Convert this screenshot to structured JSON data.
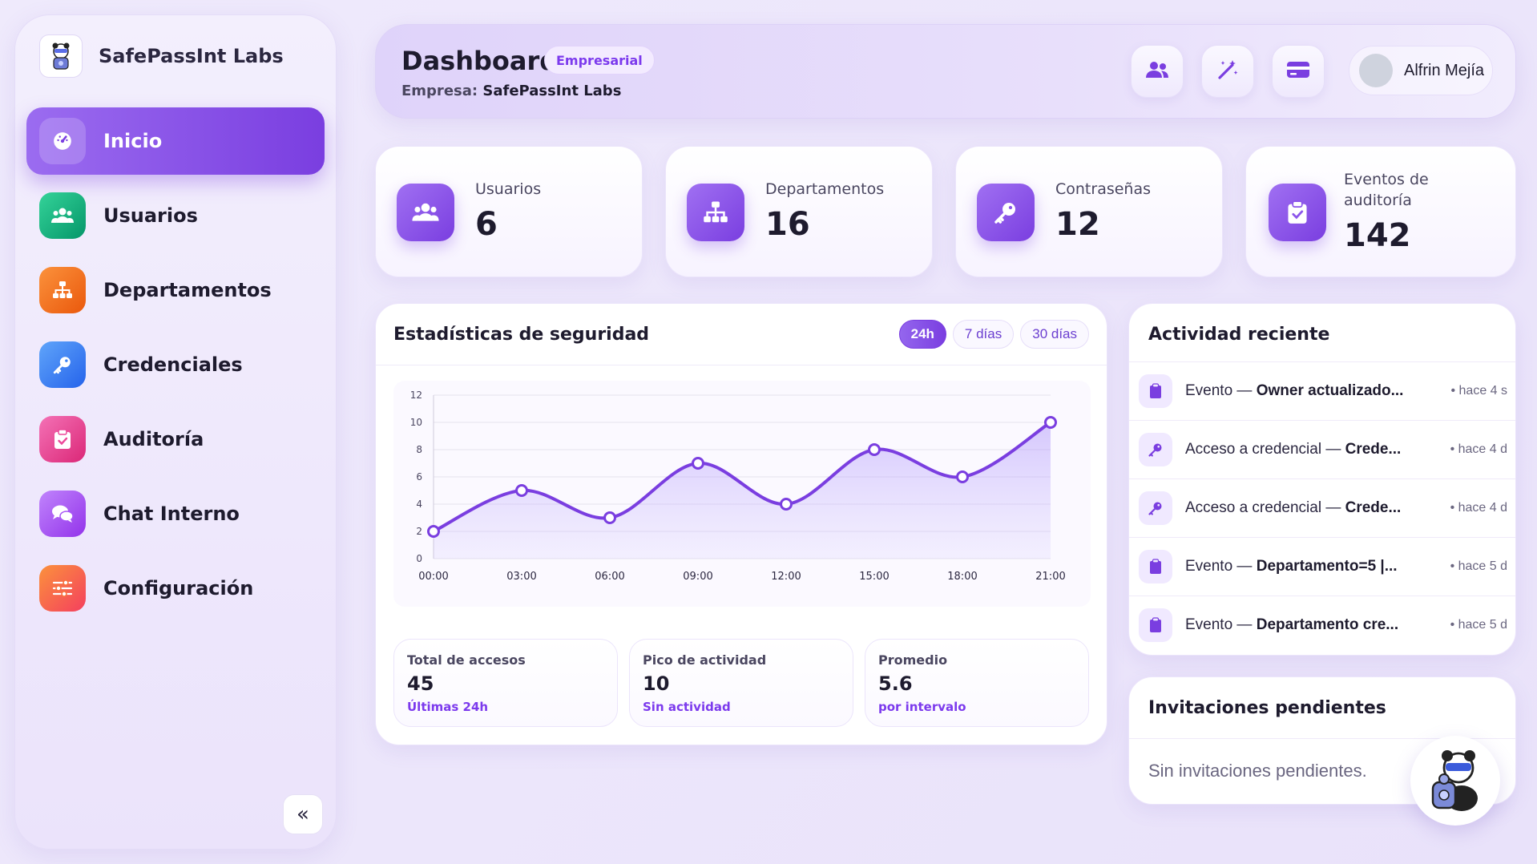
{
  "brand": {
    "name": "SafePassInt Labs"
  },
  "sidebar": {
    "items": [
      {
        "label": "Inicio",
        "icon": "gauge-icon",
        "color": "#7a3ee0",
        "active": true
      },
      {
        "label": "Usuarios",
        "icon": "users-icon",
        "color": "#10b981"
      },
      {
        "label": "Departamentos",
        "icon": "sitemap-icon",
        "color": "#f97316"
      },
      {
        "label": "Credenciales",
        "icon": "key-icon",
        "color": "#3b82f6"
      },
      {
        "label": "Auditoría",
        "icon": "clipboard-check-icon",
        "color": "#ec4899"
      },
      {
        "label": "Chat Interno",
        "icon": "chat-icon",
        "color": "#a855f7"
      },
      {
        "label": "Configuración",
        "icon": "sliders-icon",
        "color": "#f9733e"
      }
    ],
    "collapse_label": "«"
  },
  "header": {
    "title": "Dashboard",
    "badge": "Empresarial",
    "company_prefix": "Empresa:",
    "company_name": "SafePassInt Labs",
    "user_name": "Alfrin Mejía",
    "buttons": [
      "users-icon",
      "magic-wand-icon",
      "credit-card-icon"
    ]
  },
  "stats": [
    {
      "label": "Usuarios",
      "value": "6",
      "icon": "users-icon"
    },
    {
      "label": "Departamentos",
      "value": "16",
      "icon": "sitemap-icon"
    },
    {
      "label": "Contraseñas",
      "value": "12",
      "icon": "key-icon"
    },
    {
      "label_line1": "Eventos de",
      "label_line2": "auditoría",
      "value": "142",
      "icon": "clipboard-check-icon"
    }
  ],
  "security": {
    "title": "Estadísticas de seguridad",
    "tabs": [
      {
        "label": "24h",
        "active": true
      },
      {
        "label": "7 días"
      },
      {
        "label": "30 días"
      }
    ],
    "summary": [
      {
        "label": "Total de accesos",
        "value": "45",
        "sub": "Últimas 24h"
      },
      {
        "label": "Pico de actividad",
        "value": "10",
        "sub": "Sin actividad"
      },
      {
        "label": "Promedio",
        "value": "5.6",
        "sub": "por intervalo"
      }
    ]
  },
  "chart_data": {
    "type": "area",
    "categories": [
      "00:00",
      "03:00",
      "06:00",
      "09:00",
      "12:00",
      "15:00",
      "18:00",
      "21:00"
    ],
    "values": [
      2,
      5,
      3,
      7,
      4,
      8,
      6,
      10
    ],
    "ylim": [
      0,
      12
    ],
    "yticks": [
      0,
      2,
      4,
      6,
      8,
      10,
      12
    ],
    "grid": true,
    "color": "#7a3ee0"
  },
  "activity": {
    "title": "Actividad reciente",
    "items": [
      {
        "prefix": "Evento —",
        "bold": "Owner actualizado...",
        "time": "• hace 4 s",
        "icon": "clipboard-icon"
      },
      {
        "prefix": "Acceso a credencial —",
        "bold": "Crede...",
        "time": "• hace 4 d",
        "icon": "key-icon"
      },
      {
        "prefix": "Acceso a credencial —",
        "bold": "Crede...",
        "time": "• hace 4 d",
        "icon": "key-icon"
      },
      {
        "prefix": "Evento —",
        "bold": "Departamento=5 |...",
        "time": "• hace 5 d",
        "icon": "clipboard-icon"
      },
      {
        "prefix": "Evento —",
        "bold": "Departamento cre...",
        "time": "• hace 5 d",
        "icon": "clipboard-icon"
      }
    ]
  },
  "invitations": {
    "title": "Invitaciones pendientes",
    "empty": "Sin invitaciones pendientes."
  }
}
